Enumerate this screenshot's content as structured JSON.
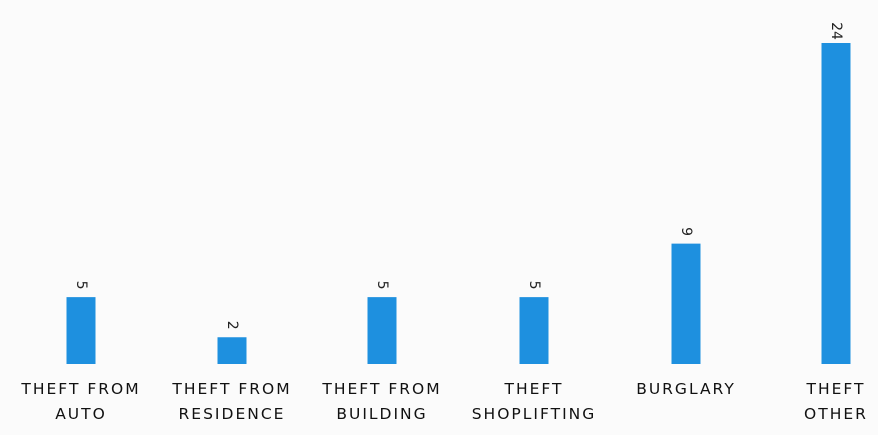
{
  "chart_data": {
    "type": "bar",
    "title": "",
    "xlabel": "",
    "ylabel": "",
    "categories": [
      [
        "THEFT FROM",
        "AUTO"
      ],
      [
        "THEFT FROM",
        "RESIDENCE"
      ],
      [
        "THEFT FROM",
        "BUILDING"
      ],
      [
        "THEFT",
        "SHOPLIFTING"
      ],
      [
        "BURGLARY"
      ],
      [
        "THEFT",
        "OTHER"
      ]
    ],
    "values": [
      5,
      2,
      5,
      5,
      9,
      24
    ],
    "data_labels": [
      "5",
      "2",
      "5",
      "5",
      "9",
      "24"
    ],
    "ylim": [
      0,
      24
    ],
    "grid": false,
    "legend": "none",
    "colors": {
      "bar": "#1e90df",
      "background": "#fbfbfb",
      "text": "#111111"
    }
  }
}
